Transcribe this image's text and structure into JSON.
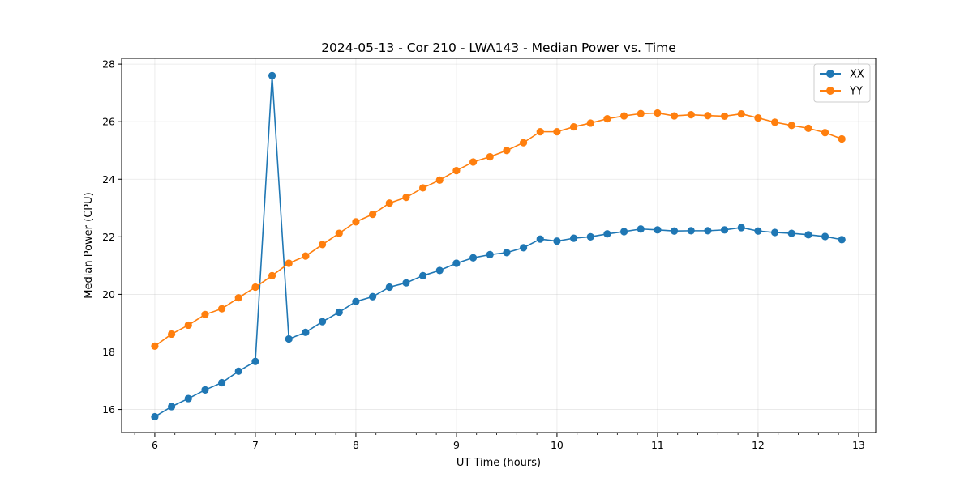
{
  "chart_data": {
    "type": "line",
    "title": "2024-05-13 - Cor 210 - LWA143 - Median Power vs. Time",
    "xlabel": "UT Time (hours)",
    "ylabel": "Median Power (CPU)",
    "xlim": [
      5.67,
      13.17
    ],
    "ylim": [
      15.2,
      28.2
    ],
    "xticks": [
      6,
      7,
      8,
      9,
      10,
      11,
      12,
      13
    ],
    "yticks": [
      16,
      18,
      20,
      22,
      24,
      26,
      28
    ],
    "grid": true,
    "legend_position": "top-right",
    "x": [
      6.0,
      6.1667,
      6.3333,
      6.5,
      6.6667,
      6.8333,
      7.0,
      7.1667,
      7.3333,
      7.5,
      7.6667,
      7.8333,
      8.0,
      8.1667,
      8.3333,
      8.5,
      8.6667,
      8.8333,
      9.0,
      9.1667,
      9.3333,
      9.5,
      9.6667,
      9.8333,
      10.0,
      10.1667,
      10.3333,
      10.5,
      10.6667,
      10.8333,
      11.0,
      11.1667,
      11.3333,
      11.5,
      11.6667,
      11.8333,
      12.0,
      12.1667,
      12.3333,
      12.5,
      12.6667,
      12.8333
    ],
    "series": [
      {
        "name": "XX",
        "color": "#1f77b4",
        "values": [
          15.75,
          16.1,
          16.38,
          16.68,
          16.93,
          17.33,
          17.67,
          27.6,
          18.45,
          18.68,
          19.05,
          19.38,
          19.75,
          19.92,
          20.25,
          20.4,
          20.65,
          20.83,
          21.08,
          21.27,
          21.38,
          21.45,
          21.62,
          21.92,
          21.85,
          21.95,
          22.0,
          22.1,
          22.18,
          22.27,
          22.24,
          22.2,
          22.21,
          22.21,
          22.24,
          22.32,
          22.2,
          22.15,
          22.12,
          22.07,
          22.01,
          21.9
        ]
      },
      {
        "name": "YY",
        "color": "#ff7f0e",
        "values": [
          18.2,
          18.62,
          18.93,
          19.3,
          19.5,
          19.88,
          20.25,
          20.65,
          21.08,
          21.33,
          21.73,
          22.12,
          22.52,
          22.78,
          23.17,
          23.37,
          23.7,
          23.97,
          24.3,
          24.6,
          24.78,
          25.0,
          25.27,
          25.65,
          25.65,
          25.82,
          25.95,
          26.1,
          26.2,
          26.28,
          26.3,
          26.2,
          26.24,
          26.21,
          26.19,
          26.27,
          26.13,
          25.98,
          25.87,
          25.77,
          25.62,
          25.4
        ]
      }
    ]
  }
}
